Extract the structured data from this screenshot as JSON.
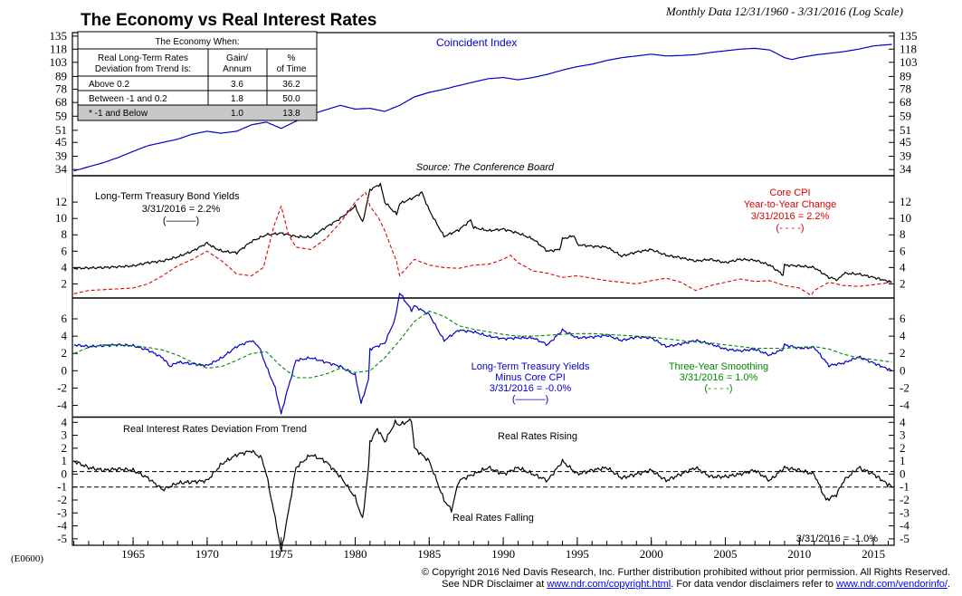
{
  "header": {
    "title": "The Economy vs Real Interest Rates",
    "subtitle": "Monthly Data 12/31/1960 - 3/31/2016 (Log Scale)",
    "code": "(E0600)"
  },
  "footer": {
    "copyright": "© Copyright 2016 Ned Davis Research, Inc.  Further distribution prohibited without prior permission.  All Rights Reserved.",
    "line2_pre": "See NDR Disclaimer at ",
    "link1": "www.ndr.com/copyright.html",
    "line2_mid": ".  For data vendor disclaimers refer to ",
    "link2": "www.ndr.com/vendorinfo/",
    "line2_post": "."
  },
  "colors": {
    "blue": "#0000cc",
    "red": "#dd0000",
    "green": "#008800",
    "black": "#000000",
    "table_shade": "#c8c8c8"
  },
  "chart_data": [
    {
      "panel": "coincident",
      "type": "line",
      "label": "Coincident Index",
      "source": "Source: The Conference Board",
      "yscale": "log",
      "yticks": [
        34,
        39,
        45,
        51,
        59,
        68,
        78,
        89,
        103,
        118,
        135
      ],
      "ylim": [
        32.5,
        140
      ],
      "series": [
        {
          "name": "Coincident Index",
          "color": "#0000cc",
          "x": [
            1961,
            1962,
            1963,
            1964,
            1965,
            1966,
            1967,
            1968,
            1969,
            1970,
            1970.9,
            1972,
            1973,
            1974,
            1975,
            1976,
            1977,
            1978,
            1979,
            1980,
            1981,
            1982,
            1983,
            1984,
            1985,
            1986,
            1987,
            1988,
            1989,
            1990,
            1991,
            1992,
            1993,
            1994,
            1995,
            1996,
            1997,
            1998,
            1999,
            2000,
            2001,
            2002,
            2003,
            2004,
            2005,
            2006,
            2007,
            2008,
            2009,
            2009.5,
            2010,
            2011,
            2012,
            2013,
            2014,
            2015,
            2016.25
          ],
          "values": [
            33.5,
            35,
            36.5,
            38.5,
            41,
            43.5,
            45,
            46.5,
            49,
            50.5,
            49.5,
            50.5,
            54,
            55.5,
            52,
            56,
            60,
            63,
            66,
            63.5,
            64,
            62,
            66,
            72,
            75.5,
            78,
            81,
            84,
            87,
            88,
            86,
            88,
            91,
            95,
            98.5,
            101,
            105,
            108,
            110,
            112,
            110,
            110.5,
            111.5,
            114,
            116,
            118,
            119,
            117,
            108,
            106,
            108,
            111,
            113,
            115,
            118,
            122,
            124
          ]
        }
      ],
      "table": {
        "title": "The Economy When:",
        "col1_header": "Real Long-Term Rates Deviation from Trend Is:",
        "col2_header": "Gain/ Annum",
        "col3_header": "% of Time",
        "rows": [
          {
            "label": "Above 0.2",
            "gain": "3.6",
            "time": "36.2",
            "shaded": false
          },
          {
            "label": "Between -1 and 0.2",
            "gain": "1.8",
            "time": "50.0",
            "shaded": false
          },
          {
            "label": "* -1 and Below",
            "gain": "1.0",
            "time": "13.8",
            "shaded": true
          }
        ]
      }
    },
    {
      "panel": "yields",
      "type": "line",
      "yticks": [
        2,
        4,
        6,
        8,
        10,
        12
      ],
      "ylim": [
        0.5,
        15
      ],
      "annotations": {
        "yield_title": "Long-Term Treasury Bond Yields",
        "yield_date": "3/31/2016 = 2.2%",
        "yield_legend": "(———)",
        "cpi_title1": "Core CPI",
        "cpi_title2": "Year-to-Year Change",
        "cpi_date": "3/31/2016 = 2.2%",
        "cpi_legend": "(- - - -)"
      },
      "series": [
        {
          "name": "Long-Term Treasury Bond Yields",
          "color": "#000000",
          "dash": false,
          "x": [
            1961,
            1963,
            1965,
            1966,
            1967,
            1968,
            1969,
            1970,
            1970.5,
            1971,
            1972,
            1973,
            1974,
            1975,
            1976,
            1977,
            1978,
            1979,
            1980,
            1980.5,
            1981,
            1981.7,
            1982,
            1982.8,
            1983,
            1984,
            1984.5,
            1985,
            1986,
            1987,
            1987.8,
            1988,
            1989,
            1990,
            1991,
            1992,
            1993,
            1993.8,
            1994,
            1994.8,
            1995,
            1996,
            1997,
            1998,
            1999,
            2000,
            2001,
            2002,
            2003,
            2004,
            2005,
            2006,
            2007,
            2008,
            2008.9,
            2009,
            2010,
            2011,
            2012,
            2012.6,
            2013,
            2014,
            2015,
            2016.25
          ],
          "values": [
            3.9,
            4.0,
            4.2,
            4.6,
            4.8,
            5.3,
            6.0,
            7.0,
            6.4,
            6.0,
            5.8,
            7.2,
            8.0,
            8.2,
            7.8,
            7.7,
            8.9,
            10.0,
            11.5,
            9.5,
            13.5,
            14.2,
            12.0,
            10.5,
            11.8,
            12.6,
            13.2,
            11.0,
            7.8,
            8.6,
            9.8,
            8.9,
            8.5,
            8.7,
            8.2,
            7.5,
            6.0,
            6.2,
            7.5,
            7.9,
            6.8,
            6.6,
            6.5,
            5.4,
            5.9,
            6.2,
            5.5,
            5.2,
            4.8,
            5.0,
            4.6,
            5.0,
            4.9,
            4.3,
            3.1,
            4.3,
            4.2,
            4.0,
            2.8,
            2.5,
            3.3,
            3.2,
            2.8,
            2.2
          ]
        },
        {
          "name": "Core CPI Year-to-Year Change",
          "color": "#dd0000",
          "dash": true,
          "x": [
            1961,
            1962,
            1963,
            1964,
            1965,
            1966,
            1967,
            1968,
            1969,
            1970,
            1971,
            1972,
            1973,
            1973.8,
            1974.5,
            1975,
            1975.5,
            1976,
            1977,
            1978,
            1979,
            1980,
            1980.7,
            1981,
            1981.6,
            1982,
            1982.8,
            1983,
            1984,
            1985,
            1986,
            1987,
            1988,
            1989,
            1990,
            1990.5,
            1991,
            1992,
            1993,
            1994,
            1995,
            1996,
            1997,
            1998,
            1999,
            2000,
            2001,
            2002,
            2003,
            2004,
            2005,
            2006,
            2007,
            2008,
            2009,
            2010,
            2010.8,
            2011,
            2012,
            2013,
            2014,
            2015,
            2016.25
          ],
          "values": [
            0.8,
            1.2,
            1.3,
            1.4,
            1.5,
            2.0,
            3.0,
            4.2,
            5.0,
            6.0,
            4.8,
            3.2,
            3.0,
            4.0,
            9.0,
            11.5,
            8.0,
            6.5,
            6.2,
            7.5,
            9.5,
            12.0,
            13.2,
            11.5,
            10.0,
            8.5,
            4.7,
            3.0,
            5.0,
            4.3,
            4.0,
            3.9,
            4.3,
            4.4,
            5.0,
            5.5,
            4.6,
            3.6,
            3.3,
            2.8,
            3.0,
            2.7,
            2.4,
            2.2,
            2.0,
            2.4,
            2.7,
            2.2,
            1.2,
            1.8,
            2.2,
            2.6,
            2.3,
            2.4,
            1.8,
            1.5,
            0.6,
            1.2,
            2.2,
            1.8,
            1.7,
            1.9,
            2.2
          ]
        }
      ]
    },
    {
      "panel": "real-yields",
      "type": "line",
      "yticks": [
        -4,
        -2,
        0,
        2,
        4,
        6
      ],
      "ylim": [
        -5.2,
        8.2
      ],
      "annotations": {
        "real_title1": "Long-Term Treasury Yields",
        "real_title2": "Minus Core CPI",
        "real_date": "3/31/2016 = -0.0%",
        "real_legend": "(———)",
        "smooth_title": "Three-Year Smoothing",
        "smooth_date": "3/31/2016 = 1.0%",
        "smooth_legend": "(- - - -)"
      },
      "series": [
        {
          "name": "Long-Term Treasury Yields Minus Core CPI",
          "color": "#0000cc",
          "dash": false,
          "x": [
            1961,
            1962,
            1963,
            1964,
            1965,
            1966,
            1967,
            1967.5,
            1968,
            1969,
            1970,
            1971,
            1972,
            1973,
            1973.5,
            1974,
            1974.6,
            1975,
            1975.3,
            1976,
            1977,
            1978,
            1979,
            1980,
            1980.4,
            1980.9,
            1981,
            1982,
            1982.7,
            1983,
            1983.8,
            1984,
            1985,
            1986,
            1987,
            1988,
            1989,
            1990,
            1991,
            1992,
            1993,
            1994,
            1995,
            1996,
            1997,
            1998,
            1999,
            2000,
            2001,
            2002,
            2003,
            2004,
            2005,
            2006,
            2007,
            2008,
            2008.9,
            2009,
            2010,
            2011,
            2012,
            2013,
            2014,
            2015,
            2016.25
          ],
          "values": [
            3.0,
            2.8,
            2.9,
            3.0,
            2.9,
            2.4,
            1.5,
            0.5,
            1.0,
            0.8,
            0.6,
            1.5,
            2.8,
            3.5,
            2.8,
            0.5,
            -2.0,
            -5.0,
            -3.0,
            1.2,
            1.5,
            1.0,
            0.5,
            -0.5,
            -3.8,
            -1.0,
            2.5,
            3.2,
            6.0,
            9.0,
            7.0,
            7.5,
            6.5,
            3.5,
            4.7,
            4.5,
            4.0,
            3.7,
            3.8,
            3.8,
            3.0,
            4.7,
            3.8,
            3.9,
            4.1,
            3.5,
            3.9,
            3.8,
            2.8,
            3.1,
            3.5,
            3.1,
            2.5,
            2.3,
            2.5,
            1.8,
            2.5,
            3.0,
            2.6,
            2.7,
            0.6,
            0.9,
            1.6,
            0.9,
            0.0
          ]
        },
        {
          "name": "Three-Year Smoothing",
          "color": "#008800",
          "dash": true,
          "x": [
            1961,
            1962,
            1963,
            1964,
            1965,
            1966,
            1967,
            1968,
            1969,
            1970,
            1971,
            1972,
            1973,
            1974,
            1975,
            1976,
            1977,
            1978,
            1979,
            1980,
            1981,
            1982,
            1983,
            1984,
            1985,
            1986,
            1987,
            1988,
            1989,
            1990,
            1991,
            1992,
            1993,
            1994,
            1995,
            1996,
            1997,
            1998,
            1999,
            2000,
            2001,
            2002,
            2003,
            2004,
            2005,
            2006,
            2007,
            2008,
            2009,
            2010,
            2011,
            2012,
            2013,
            2014,
            2015,
            2016.25
          ],
          "values": [
            2.0,
            2.7,
            3.0,
            3.0,
            2.9,
            2.7,
            2.4,
            1.8,
            1.0,
            0.3,
            0.5,
            1.2,
            2.0,
            2.2,
            0.5,
            -0.8,
            -0.8,
            -0.4,
            0.3,
            -0.2,
            0.0,
            1.5,
            3.5,
            5.7,
            6.9,
            6.3,
            5.2,
            4.8,
            4.5,
            4.2,
            4.0,
            4.0,
            4.1,
            4.2,
            4.3,
            4.3,
            4.2,
            4.1,
            4.0,
            3.9,
            3.7,
            3.5,
            3.3,
            3.2,
            3.0,
            2.8,
            2.6,
            2.6,
            2.6,
            2.7,
            2.8,
            2.5,
            1.9,
            1.5,
            1.3,
            1.0
          ]
        }
      ]
    },
    {
      "panel": "deviation",
      "type": "line",
      "yticks": [
        -5,
        -4,
        -3,
        -2,
        -1,
        0,
        1,
        2,
        3,
        4
      ],
      "ylim": [
        -5.5,
        4.3
      ],
      "reference_lines": [
        0.2,
        -1.0
      ],
      "annotations": {
        "dev_title": "Real Interest Rates Deviation From Trend",
        "rising": "Real Rates Rising",
        "falling": "Real Rates Falling",
        "dev_date": "3/31/2016 = -1.0%"
      },
      "series": [
        {
          "name": "Real Interest Rates Deviation From Trend",
          "color": "#000000",
          "dash": false,
          "x": [
            1961,
            1962,
            1963,
            1964,
            1965,
            1966,
            1967,
            1968,
            1969,
            1970,
            1971,
            1972,
            1973,
            1973.7,
            1974,
            1974.7,
            1975,
            1975.4,
            1976,
            1977,
            1978,
            1979,
            1980,
            1980.5,
            1980.9,
            1981,
            1981.5,
            1982,
            1982.7,
            1983,
            1983.8,
            1984,
            1985,
            1986,
            1986.5,
            1987,
            1988,
            1989,
            1990,
            1991,
            1992,
            1993,
            1994,
            1995,
            1996,
            1997,
            1998,
            1999,
            2000,
            2001,
            2002,
            2003,
            2004,
            2005,
            2006,
            2007,
            2008,
            2009,
            2010,
            2011,
            2011.8,
            2012.5,
            2013,
            2014,
            2015,
            2016.25
          ],
          "values": [
            1.0,
            0.5,
            0.3,
            0.4,
            0.3,
            -0.3,
            -1.2,
            -0.7,
            -0.6,
            -0.5,
            0.8,
            1.5,
            1.8,
            1.2,
            0.0,
            -4.0,
            -6.0,
            -3.5,
            0.5,
            1.5,
            1.0,
            -0.2,
            -1.8,
            -3.5,
            0.5,
            2.5,
            3.5,
            2.5,
            4.0,
            3.8,
            4.2,
            2.0,
            1.0,
            -2.0,
            -2.8,
            -0.5,
            0.0,
            0.5,
            0.0,
            0.5,
            0.0,
            -0.5,
            1.0,
            0.0,
            0.3,
            0.5,
            -0.3,
            0.0,
            0.3,
            -0.5,
            0.0,
            0.5,
            -0.2,
            -0.2,
            0.0,
            0.3,
            -0.5,
            0.5,
            0.3,
            0.0,
            -2.0,
            -1.6,
            -0.5,
            0.5,
            0.0,
            -1.0
          ]
        }
      ]
    }
  ],
  "x_axis": {
    "ticks": [
      "1965",
      "1970",
      "1975",
      "1980",
      "1985",
      "1990",
      "1995",
      "2000",
      "2005",
      "2010",
      "2015"
    ],
    "range": [
      1960.9,
      2016.4
    ]
  }
}
